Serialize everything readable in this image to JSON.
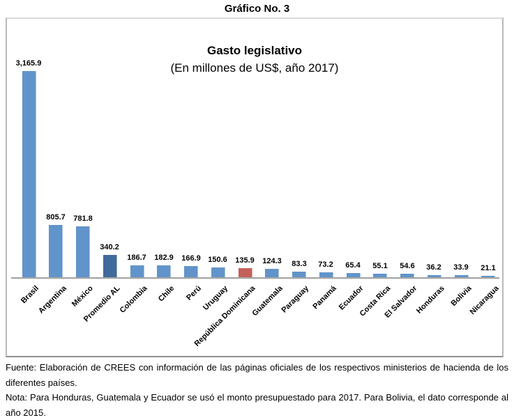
{
  "page_title": "Gráfico No. 3",
  "chart_data": {
    "type": "bar",
    "title": "Gasto legislativo",
    "subtitle": "(En millones de US$, año 2017)",
    "categories": [
      "Brasil",
      "Argentina",
      "México",
      "Promedio AL",
      "Colombia",
      "Chile",
      "Perú",
      "Uruguay",
      "República Dominicana",
      "Guatemala",
      "Paraguay",
      "Panamá",
      "Ecuador",
      "Costa Rica",
      "El Salvador",
      "Honduras",
      "Bolivia",
      "Nicaragua"
    ],
    "values": [
      3165.9,
      805.7,
      781.8,
      340.2,
      186.7,
      182.9,
      166.9,
      150.6,
      135.9,
      124.3,
      83.3,
      73.2,
      65.4,
      55.1,
      54.6,
      36.2,
      33.9,
      21.1
    ],
    "value_labels": [
      "3,165.9",
      "805.7",
      "781.8",
      "340.2",
      "186.7",
      "182.9",
      "166.9",
      "150.6",
      "135.9",
      "124.3",
      "83.3",
      "73.2",
      "65.4",
      "55.1",
      "54.6",
      "36.2",
      "33.9",
      "21.1"
    ],
    "ylim": [
      0,
      3165.9
    ],
    "grid": false,
    "legend": false,
    "colors": {
      "bar_default": "#6194ca",
      "bar_promedio_al": "#406a9b",
      "bar_republica_dominicana": "#c4605a",
      "axis": "#a6a6a6"
    },
    "special_bars": {
      "promedio_al_index": 3,
      "republica_dominicana_index": 8
    }
  },
  "footer": {
    "fuente": "Fuente: Elaboración de CREES con información de las páginas oficiales de los respectivos ministerios de hacienda de los diferentes países.",
    "nota": "Nota: Para Honduras, Guatemala y Ecuador se usó el monto presupuestado para 2017. Para Bolivia, el dato corresponde al año 2015."
  }
}
